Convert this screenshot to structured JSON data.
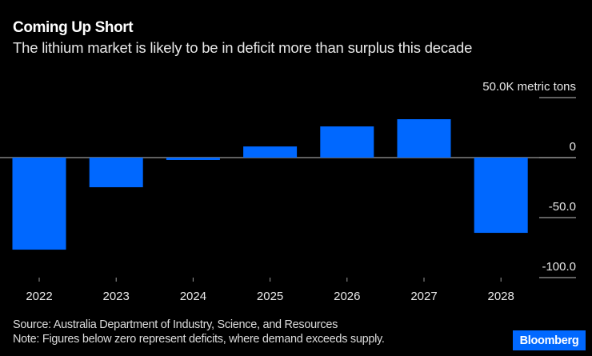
{
  "chart_data": {
    "type": "bar",
    "title": "Coming Up Short",
    "subtitle": "The lithium market is likely to be in deficit more than surplus this decade",
    "categories": [
      "2022",
      "2023",
      "2024",
      "2025",
      "2026",
      "2027",
      "2028"
    ],
    "values": [
      -76.7,
      -24.7,
      -2.0,
      9.3,
      26.0,
      32.0,
      -62.7
    ],
    "unit": "K metric tons",
    "xlabel": "",
    "ylabel": "",
    "ylim": [
      -100,
      50
    ],
    "yticks": [
      {
        "value": 50,
        "label": "50.0K metric tons"
      },
      {
        "value": 0,
        "label": "0"
      },
      {
        "value": -50,
        "label": "-50.0"
      },
      {
        "value": -100,
        "label": "-100.0"
      }
    ],
    "grid": true,
    "legend": "none",
    "bar_color": "#0068ff"
  },
  "footer": {
    "source": "Source: Australia Department of Industry, Science, and Resources",
    "note": "Note: Figures below zero represent deficits, where demand exceeds supply.",
    "brand": "Bloomberg"
  }
}
